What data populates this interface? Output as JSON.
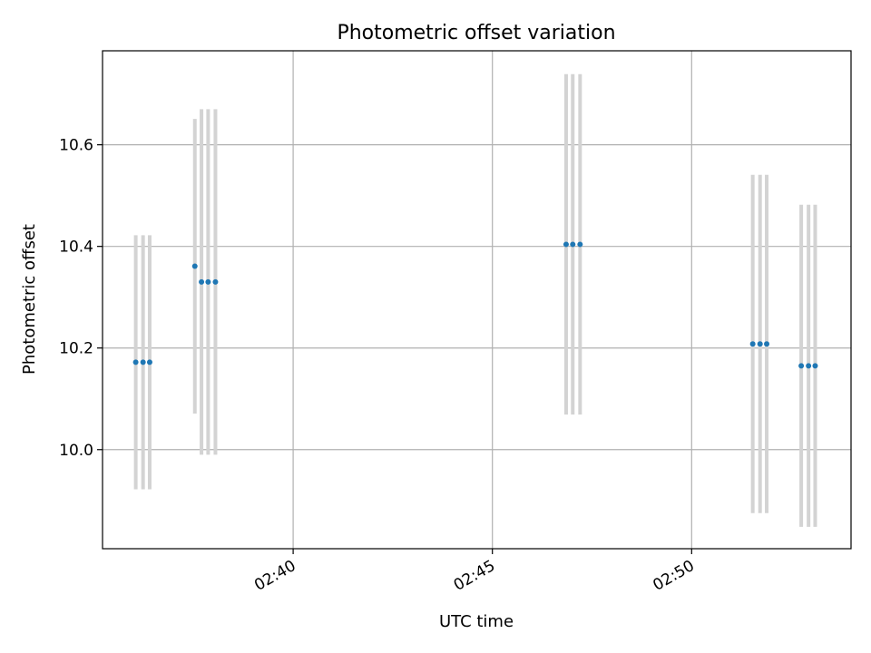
{
  "chart_data": {
    "type": "scatter",
    "title": "Photometric offset variation",
    "xlabel": "UTC time",
    "ylabel": "Photometric offset",
    "x_axis": "time",
    "xlim": [
      "02:35:13",
      "02:54:00"
    ],
    "ylim": [
      9.805,
      10.785
    ],
    "x_ticks": [
      "02:40",
      "02:45",
      "02:50"
    ],
    "y_ticks": [
      10.0,
      10.2,
      10.4,
      10.6
    ],
    "grid": true,
    "legend": "none",
    "series": [
      {
        "x": [
          "02:36:03",
          "02:36:14",
          "02:36:24",
          "02:37:32",
          "02:37:42",
          "02:37:52",
          "02:38:03",
          "02:46:51",
          "02:47:01",
          "02:47:12",
          "02:51:32",
          "02:51:43",
          "02:51:53",
          "02:52:45",
          "02:52:56",
          "02:53:06"
        ],
        "y": [
          10.172,
          10.172,
          10.172,
          10.361,
          10.33,
          10.33,
          10.33,
          10.404,
          10.404,
          10.404,
          10.208,
          10.208,
          10.208,
          10.165,
          10.165,
          10.165
        ],
        "yerr": [
          0.25,
          0.25,
          0.25,
          0.29,
          0.34,
          0.34,
          0.34,
          0.335,
          0.335,
          0.335,
          0.333,
          0.333,
          0.333,
          0.317,
          0.317,
          0.317
        ]
      }
    ],
    "colors": {
      "points": "#1f77b4",
      "errorbars": "#d3d3d3",
      "grid": "#b0b0b0",
      "axes": "#000000"
    }
  }
}
